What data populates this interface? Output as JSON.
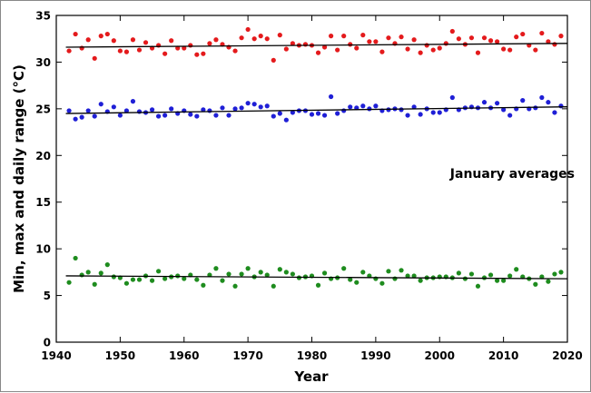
{
  "chart_data": {
    "type": "scatter",
    "title": "",
    "annotation": "January averages",
    "xlabel": "Year",
    "ylabel": "Min, max and daily range (°C)",
    "xlim": [
      1940,
      2020
    ],
    "ylim": [
      0,
      35
    ],
    "xticks": [
      1940,
      1950,
      1960,
      1970,
      1980,
      1990,
      2000,
      2010,
      2020
    ],
    "yticks": [
      0,
      5,
      10,
      15,
      20,
      25,
      30,
      35
    ],
    "grid": false,
    "legend": "none",
    "years": [
      1942,
      1943,
      1944,
      1945,
      1946,
      1947,
      1948,
      1949,
      1950,
      1951,
      1952,
      1953,
      1954,
      1955,
      1956,
      1957,
      1958,
      1959,
      1960,
      1961,
      1962,
      1963,
      1964,
      1965,
      1966,
      1967,
      1968,
      1969,
      1970,
      1971,
      1972,
      1973,
      1974,
      1975,
      1976,
      1977,
      1978,
      1979,
      1980,
      1981,
      1982,
      1983,
      1984,
      1985,
      1986,
      1987,
      1988,
      1989,
      1990,
      1991,
      1992,
      1993,
      1994,
      1995,
      1996,
      1997,
      1998,
      1999,
      2000,
      2001,
      2002,
      2003,
      2004,
      2005,
      2006,
      2007,
      2008,
      2009,
      2010,
      2011,
      2012,
      2013,
      2014,
      2015,
      2016,
      2017,
      2018,
      2019
    ],
    "series": [
      {
        "color": "#e41a1c",
        "values": [
          31.2,
          33.0,
          31.5,
          32.4,
          30.4,
          32.8,
          33.0,
          32.3,
          31.2,
          31.1,
          32.4,
          31.3,
          32.1,
          31.5,
          31.8,
          30.9,
          32.3,
          31.5,
          31.5,
          31.8,
          30.8,
          30.9,
          32.0,
          32.4,
          31.9,
          31.6,
          31.2,
          32.6,
          33.5,
          32.5,
          32.8,
          32.5,
          30.2,
          32.9,
          31.4,
          32.0,
          31.8,
          31.9,
          31.8,
          31.0,
          31.6,
          32.8,
          31.3,
          32.8,
          31.9,
          31.5,
          32.9,
          32.2,
          32.2,
          31.1,
          32.6,
          32.0,
          32.7,
          31.4,
          32.4,
          31.0,
          31.8,
          31.3,
          31.5,
          32.0,
          33.3,
          32.5,
          31.9,
          32.6,
          31.0,
          32.6,
          32.3,
          32.2,
          31.4,
          31.3,
          32.7,
          33.0,
          31.8,
          31.3,
          33.1,
          32.2,
          31.9,
          32.8
        ],
        "trend": [
          31.6,
          32.0
        ]
      },
      {
        "color": "#1f1fd6",
        "values": [
          24.8,
          23.9,
          24.1,
          24.8,
          24.2,
          25.5,
          24.7,
          25.2,
          24.3,
          24.8,
          25.8,
          24.7,
          24.6,
          24.9,
          24.2,
          24.3,
          25.0,
          24.5,
          24.8,
          24.4,
          24.2,
          24.9,
          24.8,
          24.3,
          25.1,
          24.3,
          25.0,
          25.1,
          25.6,
          25.5,
          25.2,
          25.3,
          24.2,
          24.5,
          23.8,
          24.6,
          24.8,
          24.8,
          24.4,
          24.5,
          24.3,
          26.3,
          24.5,
          24.8,
          25.2,
          25.1,
          25.3,
          25.0,
          25.3,
          24.8,
          24.9,
          25.0,
          24.9,
          24.3,
          25.2,
          24.4,
          25.0,
          24.6,
          24.6,
          24.9,
          26.2,
          24.9,
          25.1,
          25.2,
          25.1,
          25.7,
          25.1,
          25.6,
          24.9,
          24.3,
          25.0,
          25.9,
          25.0,
          25.1,
          26.2,
          25.7,
          24.6,
          25.3
        ],
        "trend": [
          24.5,
          25.2
        ]
      },
      {
        "color": "#1e8c1e",
        "values": [
          6.4,
          9.0,
          7.2,
          7.5,
          6.2,
          7.4,
          8.3,
          7.0,
          6.9,
          6.3,
          6.7,
          6.7,
          7.1,
          6.6,
          7.6,
          6.8,
          7.0,
          7.1,
          6.8,
          7.2,
          6.7,
          6.1,
          7.2,
          7.9,
          6.6,
          7.3,
          6.0,
          7.3,
          7.9,
          7.0,
          7.5,
          7.2,
          6.0,
          7.8,
          7.5,
          7.3,
          6.9,
          7.0,
          7.1,
          6.1,
          7.4,
          6.8,
          6.9,
          7.9,
          6.7,
          6.4,
          7.5,
          7.1,
          6.8,
          6.3,
          7.6,
          6.8,
          7.7,
          7.1,
          7.1,
          6.6,
          6.9,
          6.9,
          7.0,
          7.0,
          6.9,
          7.4,
          6.8,
          7.3,
          6.0,
          6.9,
          7.2,
          6.6,
          6.6,
          7.1,
          7.8,
          7.0,
          6.8,
          6.2,
          7.0,
          6.5,
          7.3,
          7.5
        ],
        "trend": [
          7.1,
          6.8
        ]
      }
    ]
  }
}
